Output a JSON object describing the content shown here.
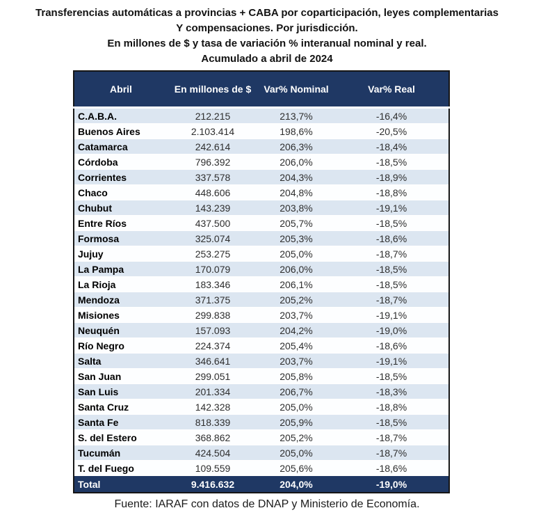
{
  "title": {
    "line1": "Transferencias automáticas a provincias + CABA por coparticipación, leyes complementarias",
    "line2": "Y compensaciones. Por jurisdicción.",
    "line3": "En millones de $ y tasa de variación % interanual nominal y real.",
    "line4": "Acumulado a abril de 2024"
  },
  "table": {
    "headers": [
      "Abril",
      "En millones de $",
      "Var% Nominal",
      "Var% Real"
    ],
    "rows": [
      {
        "name": "C.A.B.A.",
        "millones": "212.215",
        "var_nominal": "213,7%",
        "var_real": "-16,4%"
      },
      {
        "name": "Buenos Aires",
        "millones": "2.103.414",
        "var_nominal": "198,6%",
        "var_real": "-20,5%"
      },
      {
        "name": "Catamarca",
        "millones": "242.614",
        "var_nominal": "206,3%",
        "var_real": "-18,4%"
      },
      {
        "name": "Córdoba",
        "millones": "796.392",
        "var_nominal": "206,0%",
        "var_real": "-18,5%"
      },
      {
        "name": "Corrientes",
        "millones": "337.578",
        "var_nominal": "204,3%",
        "var_real": "-18,9%"
      },
      {
        "name": "Chaco",
        "millones": "448.606",
        "var_nominal": "204,8%",
        "var_real": "-18,8%"
      },
      {
        "name": "Chubut",
        "millones": "143.239",
        "var_nominal": "203,8%",
        "var_real": "-19,1%"
      },
      {
        "name": "Entre Ríos",
        "millones": "437.500",
        "var_nominal": "205,7%",
        "var_real": "-18,5%"
      },
      {
        "name": "Formosa",
        "millones": "325.074",
        "var_nominal": "205,3%",
        "var_real": "-18,6%"
      },
      {
        "name": "Jujuy",
        "millones": "253.275",
        "var_nominal": "205,0%",
        "var_real": "-18,7%"
      },
      {
        "name": "La Pampa",
        "millones": "170.079",
        "var_nominal": "206,0%",
        "var_real": "-18,5%"
      },
      {
        "name": "La Rioja",
        "millones": "183.346",
        "var_nominal": "206,1%",
        "var_real": "-18,5%"
      },
      {
        "name": "Mendoza",
        "millones": "371.375",
        "var_nominal": "205,2%",
        "var_real": "-18,7%"
      },
      {
        "name": "Misiones",
        "millones": "299.838",
        "var_nominal": "203,7%",
        "var_real": "-19,1%"
      },
      {
        "name": "Neuquén",
        "millones": "157.093",
        "var_nominal": "204,2%",
        "var_real": "-19,0%"
      },
      {
        "name": "Río Negro",
        "millones": "224.374",
        "var_nominal": "205,4%",
        "var_real": "-18,6%"
      },
      {
        "name": "Salta",
        "millones": "346.641",
        "var_nominal": "203,7%",
        "var_real": "-19,1%"
      },
      {
        "name": "San Juan",
        "millones": "299.051",
        "var_nominal": "205,8%",
        "var_real": "-18,5%"
      },
      {
        "name": "San Luis",
        "millones": "201.334",
        "var_nominal": "206,7%",
        "var_real": "-18,3%"
      },
      {
        "name": "Santa Cruz",
        "millones": "142.328",
        "var_nominal": "205,0%",
        "var_real": "-18,8%"
      },
      {
        "name": "Santa Fe",
        "millones": "818.339",
        "var_nominal": "205,9%",
        "var_real": "-18,5%"
      },
      {
        "name": "S. del Estero",
        "millones": "368.862",
        "var_nominal": "205,2%",
        "var_real": "-18,7%"
      },
      {
        "name": "Tucumán",
        "millones": "424.504",
        "var_nominal": "205,0%",
        "var_real": "-18,7%"
      },
      {
        "name": "T. del Fuego",
        "millones": "109.559",
        "var_nominal": "205,6%",
        "var_real": "-18,6%"
      }
    ],
    "total": {
      "name": "Total",
      "millones": "9.416.632",
      "var_nominal": "204,0%",
      "var_real": "-19,0%"
    }
  },
  "footer": "Fuente: IARAF con datos de DNAP y Ministerio de Economía.",
  "colors": {
    "header_bg": "#1F3864",
    "band_row_bg": "#DCE6F1",
    "plain_row_bg": "#FDFEFF",
    "header_text": "#FFFFFF",
    "table_border": "#161616"
  },
  "chart_data": {
    "type": "table",
    "title": "Transferencias automáticas a provincias + CABA por coparticipación, leyes complementarias y compensaciones. Por jurisdicción. En millones de $ y tasa de variación % interanual nominal y real. Acumulado a abril de 2024",
    "columns": [
      "Abril (jurisdicción)",
      "En millones de $",
      "Var% Nominal",
      "Var% Real"
    ],
    "rows": [
      [
        "C.A.B.A.",
        212215,
        213.7,
        -16.4
      ],
      [
        "Buenos Aires",
        2103414,
        198.6,
        -20.5
      ],
      [
        "Catamarca",
        242614,
        206.3,
        -18.4
      ],
      [
        "Córdoba",
        796392,
        206.0,
        -18.5
      ],
      [
        "Corrientes",
        337578,
        204.3,
        -18.9
      ],
      [
        "Chaco",
        448606,
        204.8,
        -18.8
      ],
      [
        "Chubut",
        143239,
        203.8,
        -19.1
      ],
      [
        "Entre Ríos",
        437500,
        205.7,
        -18.5
      ],
      [
        "Formosa",
        325074,
        205.3,
        -18.6
      ],
      [
        "Jujuy",
        253275,
        205.0,
        -18.7
      ],
      [
        "La Pampa",
        170079,
        206.0,
        -18.5
      ],
      [
        "La Rioja",
        183346,
        206.1,
        -18.5
      ],
      [
        "Mendoza",
        371375,
        205.2,
        -18.7
      ],
      [
        "Misiones",
        299838,
        203.7,
        -19.1
      ],
      [
        "Neuquén",
        157093,
        204.2,
        -19.0
      ],
      [
        "Río Negro",
        224374,
        205.4,
        -18.6
      ],
      [
        "Salta",
        346641,
        203.7,
        -19.1
      ],
      [
        "San Juan",
        299051,
        205.8,
        -18.5
      ],
      [
        "San Luis",
        201334,
        206.7,
        -18.3
      ],
      [
        "Santa Cruz",
        142328,
        205.0,
        -18.8
      ],
      [
        "Santa Fe",
        818339,
        205.9,
        -18.5
      ],
      [
        "S. del Estero",
        368862,
        205.2,
        -18.7
      ],
      [
        "Tucumán",
        424504,
        205.0,
        -18.7
      ],
      [
        "T. del Fuego",
        109559,
        205.6,
        -18.6
      ]
    ],
    "total": [
      "Total",
      9416632,
      204.0,
      -19.0
    ],
    "source": "Fuente: IARAF con datos de DNAP y Ministerio de Economía."
  }
}
